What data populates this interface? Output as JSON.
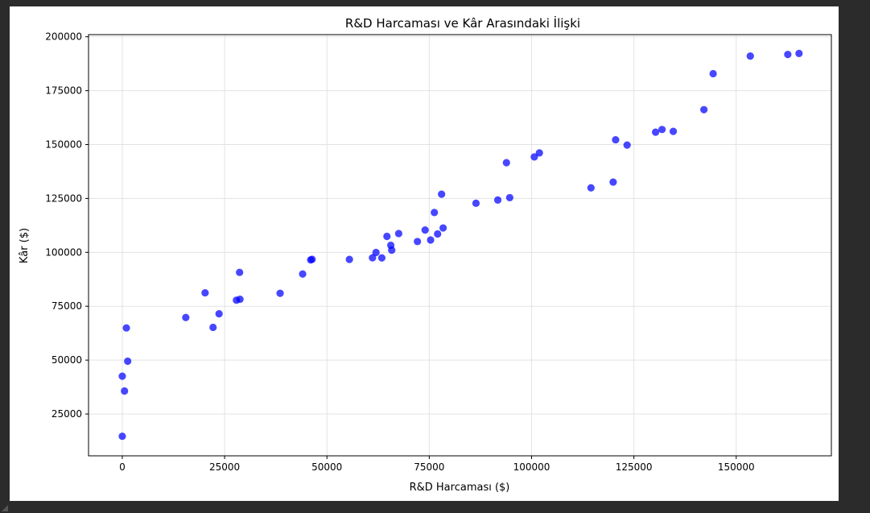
{
  "chart_data": {
    "type": "scatter",
    "title": "R&D Harcaması ve Kâr Arasındaki İlişki",
    "xlabel": "R&D Harcaması ($)",
    "ylabel": "Kâr ($)",
    "xlim": [
      -8250,
      173250
    ],
    "ylim": [
      5600,
      201000
    ],
    "xticks": [
      0,
      25000,
      50000,
      75000,
      100000,
      125000,
      150000
    ],
    "yticks": [
      25000,
      50000,
      75000,
      100000,
      125000,
      150000,
      175000,
      200000
    ],
    "grid": true,
    "marker_color": "#0000ff",
    "marker_alpha": 0.72,
    "points": [
      [
        165350,
        192262
      ],
      [
        162600,
        191792
      ],
      [
        153440,
        191050
      ],
      [
        144370,
        182902
      ],
      [
        142110,
        166188
      ],
      [
        131880,
        156991
      ],
      [
        134620,
        156123
      ],
      [
        130300,
        155753
      ],
      [
        120540,
        152212
      ],
      [
        123340,
        149760
      ],
      [
        101910,
        146122
      ],
      [
        100670,
        144259
      ],
      [
        93860,
        141586
      ],
      [
        119940,
        132602
      ],
      [
        114520,
        129917
      ],
      [
        78010,
        126993
      ],
      [
        94660,
        125371
      ],
      [
        91750,
        124267
      ],
      [
        86420,
        122777
      ],
      [
        76250,
        118474
      ],
      [
        78390,
        111314
      ],
      [
        73990,
        110352
      ],
      [
        67530,
        108734
      ],
      [
        77040,
        108552
      ],
      [
        64660,
        107404
      ],
      [
        75330,
        105734
      ],
      [
        72110,
        105008
      ],
      [
        65600,
        103282
      ],
      [
        65830,
        101004
      ],
      [
        61990,
        99938
      ],
      [
        61130,
        97484
      ],
      [
        63410,
        97427
      ],
      [
        46370,
        96779
      ],
      [
        55490,
        96712
      ],
      [
        46030,
        96479
      ],
      [
        28660,
        90708
      ],
      [
        44070,
        89949
      ],
      [
        20230,
        81229
      ],
      [
        38560,
        81006
      ],
      [
        28750,
        78240
      ],
      [
        27890,
        77799
      ],
      [
        23640,
        71498
      ],
      [
        15510,
        69759
      ],
      [
        22180,
        65200
      ],
      [
        1000,
        64927
      ],
      [
        1320,
        49491
      ],
      [
        0,
        42560
      ],
      [
        540,
        35673
      ],
      [
        0,
        14681
      ]
    ]
  }
}
